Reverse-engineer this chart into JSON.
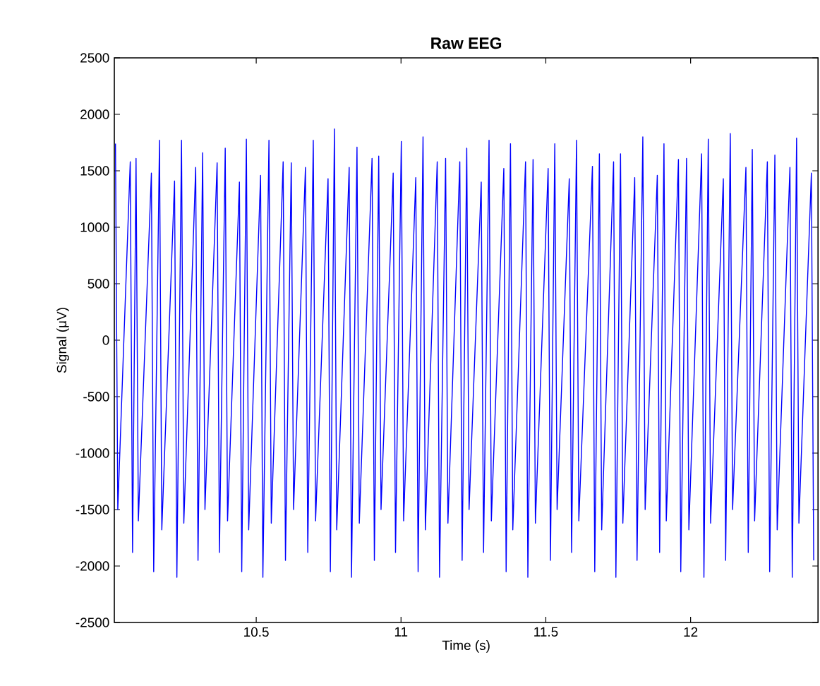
{
  "chart_data": {
    "type": "line",
    "title": "Raw EEG",
    "xlabel": "Time (s)",
    "ylabel": "Signal (μV)",
    "xlim": [
      10.01,
      12.44
    ],
    "ylim": [
      -2500,
      2500
    ],
    "xticks": [
      10.5,
      11,
      11.5,
      12
    ],
    "yticks": [
      -2500,
      -2000,
      -1500,
      -1000,
      -500,
      0,
      500,
      1000,
      1500,
      2000,
      2500
    ],
    "line_style": "solid",
    "series": [
      {
        "color": "#0000ff",
        "x": [
          10.014,
          10.022,
          10.065,
          10.073,
          10.085,
          10.093,
          10.138,
          10.146,
          10.166,
          10.174,
          10.218,
          10.226,
          10.242,
          10.25,
          10.291,
          10.299,
          10.315,
          10.323,
          10.365,
          10.373,
          10.393,
          10.401,
          10.442,
          10.45,
          10.466,
          10.474,
          10.515,
          10.523,
          10.544,
          10.552,
          10.593,
          10.601,
          10.621,
          10.629,
          10.67,
          10.678,
          10.697,
          10.705,
          10.748,
          10.756,
          10.77,
          10.778,
          10.821,
          10.829,
          10.848,
          10.856,
          10.9,
          10.908,
          10.923,
          10.931,
          10.973,
          10.981,
          11.001,
          11.009,
          11.051,
          11.059,
          11.076,
          11.084,
          11.125,
          11.133,
          11.154,
          11.162,
          11.203,
          11.211,
          11.227,
          11.235,
          11.277,
          11.285,
          11.304,
          11.312,
          11.355,
          11.363,
          11.378,
          11.386,
          11.43,
          11.438,
          11.456,
          11.464,
          11.508,
          11.516,
          11.531,
          11.539,
          11.581,
          11.589,
          11.606,
          11.614,
          11.661,
          11.669,
          11.685,
          11.693,
          11.734,
          11.742,
          11.758,
          11.766,
          11.807,
          11.815,
          11.835,
          11.843,
          11.885,
          11.893,
          11.908,
          11.916,
          11.958,
          11.966,
          11.986,
          11.994,
          12.038,
          12.046,
          12.061,
          12.069,
          12.113,
          12.121,
          12.137,
          12.145,
          12.191,
          12.199,
          12.213,
          12.221,
          12.265,
          12.273,
          12.291,
          12.299,
          12.343,
          12.351,
          12.366,
          12.374,
          12.417,
          12.425
        ],
        "values": [
          1740,
          -1500,
          1580,
          -1880,
          1610,
          -1600,
          1480,
          -2050,
          1770,
          -1680,
          1410,
          -2100,
          1770,
          -1620,
          1530,
          -1950,
          1660,
          -1500,
          1570,
          -1880,
          1700,
          -1600,
          1400,
          -2050,
          1780,
          -1680,
          1460,
          -2100,
          1770,
          -1620,
          1580,
          -1950,
          1570,
          -1500,
          1530,
          -1880,
          1770,
          -1600,
          1430,
          -2050,
          1870,
          -1680,
          1530,
          -2100,
          1710,
          -1620,
          1610,
          -1950,
          1630,
          -1500,
          1480,
          -1880,
          1760,
          -1600,
          1440,
          -2050,
          1800,
          -1680,
          1580,
          -2100,
          1610,
          -1620,
          1580,
          -1950,
          1700,
          -1500,
          1400,
          -1880,
          1770,
          -1600,
          1520,
          -2050,
          1740,
          -1680,
          1580,
          -2100,
          1600,
          -1620,
          1520,
          -1950,
          1740,
          -1500,
          1430,
          -1880,
          1770,
          -1600,
          1540,
          -2050,
          1650,
          -1680,
          1580,
          -2100,
          1650,
          -1620,
          1440,
          -1950,
          1800,
          -1500,
          1460,
          -1880,
          1740,
          -1600,
          1600,
          -2050,
          1610,
          -1680,
          1650,
          -2100,
          1780,
          -1620,
          1430,
          -1950,
          1830,
          -1500,
          1530,
          -1880,
          1690,
          -1600,
          1580,
          -2050,
          1640,
          -1680,
          1530,
          -2100,
          1790,
          -1620,
          1480,
          -1950
        ]
      }
    ]
  }
}
